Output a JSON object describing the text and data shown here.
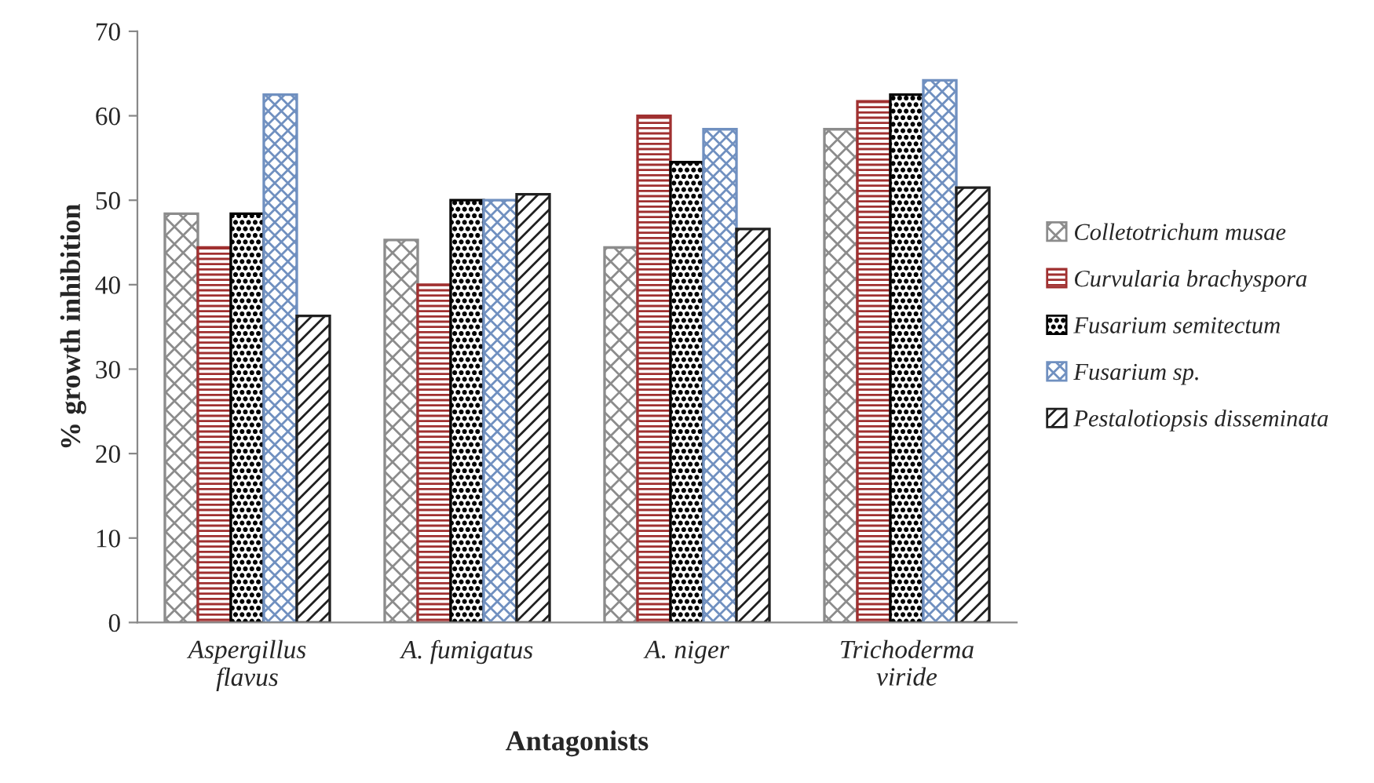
{
  "chart_data": {
    "type": "bar",
    "xlabel": "Antagonists",
    "ylabel": "% growth inhibition",
    "categories": [
      "Aspergillus\nflavus",
      "A. fumigatus",
      "A. niger",
      "Trichoderma\nviride"
    ],
    "series": [
      {
        "name": "Colletotrichum musae",
        "color": "#8c8c8c",
        "values": [
          48.4,
          45.3,
          44.4,
          58.4
        ]
      },
      {
        "name": "Curvularia brachyspora",
        "color": "#a03030",
        "values": [
          44.4,
          40.0,
          60.0,
          61.7
        ]
      },
      {
        "name": "Fusarium semitectum",
        "color": "#000000",
        "values": [
          48.4,
          50.0,
          54.5,
          62.5
        ]
      },
      {
        "name": "Fusarium sp.",
        "color": "#7090c0",
        "values": [
          62.5,
          50.0,
          58.4,
          64.2
        ]
      },
      {
        "name": "Pestalotiopsis disseminata",
        "color": "#202020",
        "values": [
          36.3,
          50.7,
          46.6,
          51.5
        ]
      }
    ],
    "ylim": [
      0,
      70
    ],
    "yticks": [
      0,
      10,
      20,
      30,
      40,
      50,
      60,
      70
    ],
    "grid": false,
    "legend": "right"
  }
}
